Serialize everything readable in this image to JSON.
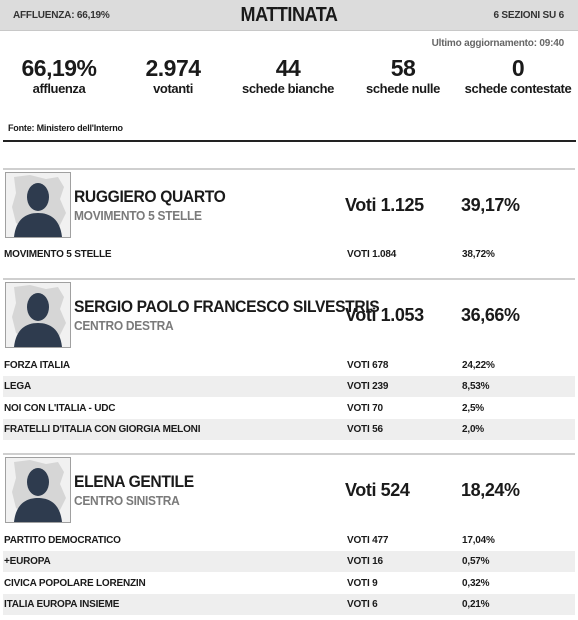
{
  "header": {
    "turnout_label": "AFFLUENZA: 66,19%",
    "title": "MATTINATA",
    "sections": "6 SEZIONI SU 6"
  },
  "last_update": "Ultimo aggiornamento: 09:40",
  "stats": [
    {
      "value": "66,19%",
      "label": "affluenza"
    },
    {
      "value": "2.974",
      "label": "votanti"
    },
    {
      "value": "44",
      "label": "schede bianche"
    },
    {
      "value": "58",
      "label": "schede nulle"
    },
    {
      "value": "0",
      "label": "schede contestate"
    }
  ],
  "source": "Fonte: Ministero dell'Interno",
  "candidates": [
    {
      "name": "RUGGIERO QUARTO",
      "party": "MOVIMENTO 5 STELLE",
      "votes": "Voti 1.125",
      "percent": "39,17%",
      "lists": [
        {
          "name": "MOVIMENTO 5 STELLE",
          "votes": "VOTI 1.084",
          "percent": "38,72%"
        }
      ]
    },
    {
      "name": "SERGIO PAOLO FRANCESCO SILVESTRIS",
      "party": "CENTRO DESTRA",
      "votes": "Voti 1.053",
      "percent": "36,66%",
      "lists": [
        {
          "name": "FORZA ITALIA",
          "votes": "VOTI 678",
          "percent": "24,22%"
        },
        {
          "name": "LEGA",
          "votes": "VOTI 239",
          "percent": "8,53%"
        },
        {
          "name": "NOI CON L'ITALIA - UDC",
          "votes": "VOTI 70",
          "percent": "2,5%"
        },
        {
          "name": "FRATELLI D'ITALIA CON GIORGIA MELONI",
          "votes": "VOTI 56",
          "percent": "2,0%"
        }
      ]
    },
    {
      "name": "ELENA GENTILE",
      "party": "CENTRO SINISTRA",
      "votes": "Voti 524",
      "percent": "18,24%",
      "lists": [
        {
          "name": "PARTITO DEMOCRATICO",
          "votes": "VOTI 477",
          "percent": "17,04%"
        },
        {
          "name": "+EUROPA",
          "votes": "VOTI 16",
          "percent": "0,57%"
        },
        {
          "name": "CIVICA POPOLARE LORENZIN",
          "votes": "VOTI 9",
          "percent": "0,32%"
        },
        {
          "name": "ITALIA EUROPA INSIEME",
          "votes": "VOTI 6",
          "percent": "0,21%"
        }
      ]
    }
  ],
  "colors": {
    "header_bg": "#dcdcdc",
    "party_text": "#7a7a7a",
    "alt_row": "#eeeeee",
    "avatar_silhouette": "#2e3b4e"
  },
  "icons": {
    "avatar": "person-silhouette-icon"
  }
}
